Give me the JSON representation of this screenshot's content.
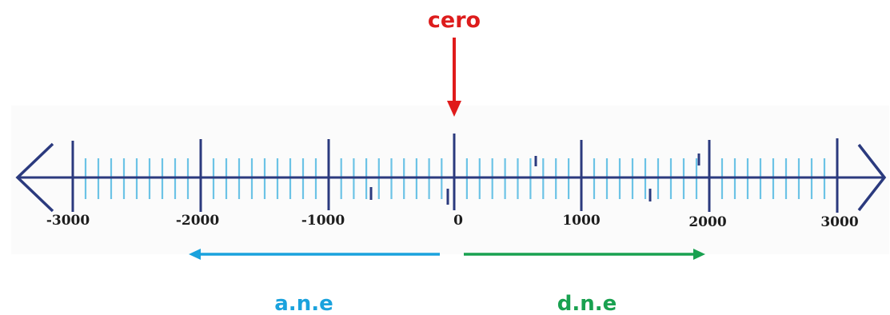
{
  "zero_label": "cero",
  "tick_labels": [
    "-3000",
    "-2000",
    "-1000",
    "0",
    "1000",
    "2000",
    "3000"
  ],
  "left_arrow_label": "a.n.e",
  "right_arrow_label": "d.n.e",
  "colors": {
    "axis": "#2b3a7e",
    "minor_tick": "#6cc3e6",
    "zero_text": "#dd1c1c",
    "zero_arrow": "#e01b1b",
    "left_arrow": "#1aa2dd",
    "right_arrow": "#19a150"
  }
}
